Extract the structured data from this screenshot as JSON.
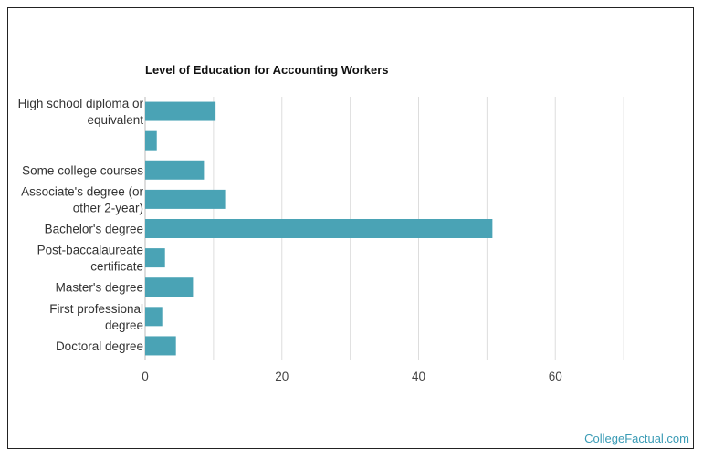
{
  "chart_data": {
    "type": "bar",
    "orientation": "horizontal",
    "title": "Level of Education for Accounting Workers",
    "xlabel": "",
    "ylabel": "",
    "categories": [
      [
        "High school diploma or",
        "equivalent"
      ],
      [
        ""
      ],
      [
        "Some college courses"
      ],
      [
        "Associate's degree (or",
        "other 2-year)"
      ],
      [
        "Bachelor's degree"
      ],
      [
        "Post-baccalaureate",
        "certificate"
      ],
      [
        "Master's degree"
      ],
      [
        "First professional",
        "degree"
      ],
      [
        "Doctoral degree"
      ]
    ],
    "values": [
      10.3,
      1.7,
      8.6,
      11.7,
      50.8,
      2.9,
      7.0,
      2.5,
      4.5
    ],
    "xlim": [
      0,
      80
    ],
    "xticks": [
      0,
      20,
      40,
      60
    ],
    "grid": true,
    "bar_color": "#4aa3b5",
    "grid_color": "#dddddd"
  },
  "footer": {
    "source": "CollegeFactual.com"
  }
}
